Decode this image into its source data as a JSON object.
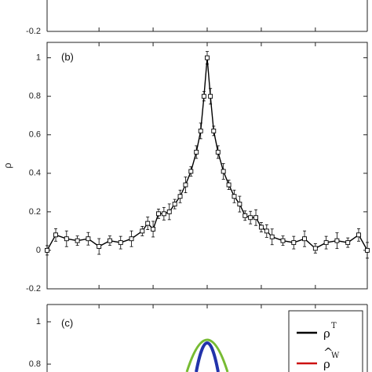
{
  "chart_data": [
    {
      "panel": "(a)",
      "type": "line",
      "visible_y_ticks": [
        "-0.2"
      ],
      "ylim_bottom": -0.2
    },
    {
      "panel": "(b)",
      "type": "line",
      "ylabel": "ρ",
      "ylim": [
        -0.2,
        1.08
      ],
      "y_ticks": [
        -0.2,
        0,
        0.2,
        0.4,
        0.6,
        0.8,
        1
      ],
      "y_tick_labels": [
        "-0.2",
        "0",
        "0.2",
        "0.4",
        "0.6",
        "0.8",
        "1"
      ],
      "x_ticks": [
        -100,
        -50,
        0,
        50,
        100
      ],
      "xlim": [
        -148,
        148
      ],
      "series": [
        {
          "color": "#000000",
          "marker": "square",
          "error_bars": true,
          "peak_value": 1.0,
          "points": [
            [
              -148,
              0.0
            ],
            [
              -140,
              0.08
            ],
            [
              -130,
              0.06
            ],
            [
              -120,
              0.05
            ],
            [
              -110,
              0.06
            ],
            [
              -100,
              0.02
            ],
            [
              -90,
              0.05
            ],
            [
              -80,
              0.04
            ],
            [
              -70,
              0.06
            ],
            [
              -60,
              0.1
            ],
            [
              -55,
              0.14
            ],
            [
              -50,
              0.11
            ],
            [
              -45,
              0.19
            ],
            [
              -40,
              0.19
            ],
            [
              -35,
              0.2
            ],
            [
              -30,
              0.24
            ],
            [
              -25,
              0.28
            ],
            [
              -20,
              0.34
            ],
            [
              -15,
              0.41
            ],
            [
              -10,
              0.51
            ],
            [
              -6,
              0.62
            ],
            [
              -3,
              0.8
            ],
            [
              0,
              1.0
            ],
            [
              3,
              0.8
            ],
            [
              6,
              0.62
            ],
            [
              10,
              0.51
            ],
            [
              15,
              0.41
            ],
            [
              20,
              0.34
            ],
            [
              25,
              0.28
            ],
            [
              30,
              0.24
            ],
            [
              35,
              0.18
            ],
            [
              40,
              0.17
            ],
            [
              45,
              0.17
            ],
            [
              50,
              0.12
            ],
            [
              55,
              0.1
            ],
            [
              60,
              0.07
            ],
            [
              70,
              0.05
            ],
            [
              80,
              0.04
            ],
            [
              90,
              0.06
            ],
            [
              100,
              0.01
            ],
            [
              110,
              0.04
            ],
            [
              120,
              0.05
            ],
            [
              130,
              0.04
            ],
            [
              140,
              0.08
            ],
            [
              148,
              0.0
            ]
          ]
        }
      ]
    },
    {
      "panel": "(c)",
      "type": "line",
      "visible_y_ticks": [
        "1",
        "0.8"
      ],
      "y_tick_values": [
        1,
        0.8
      ],
      "x_ticks": [
        -100,
        -50,
        0,
        50,
        100
      ],
      "legend_position": "top-right",
      "legend": [
        {
          "symbol": "ρ",
          "superscript": "T",
          "hat": false,
          "color": "#000000"
        },
        {
          "symbol": "ρ",
          "superscript": "W",
          "hat": true,
          "color": "#cc1111"
        }
      ],
      "series": [
        {
          "color": "#77bb33",
          "peak_value": 1.0
        },
        {
          "color": "#2233aa",
          "peak_value": 0.97
        }
      ]
    }
  ]
}
